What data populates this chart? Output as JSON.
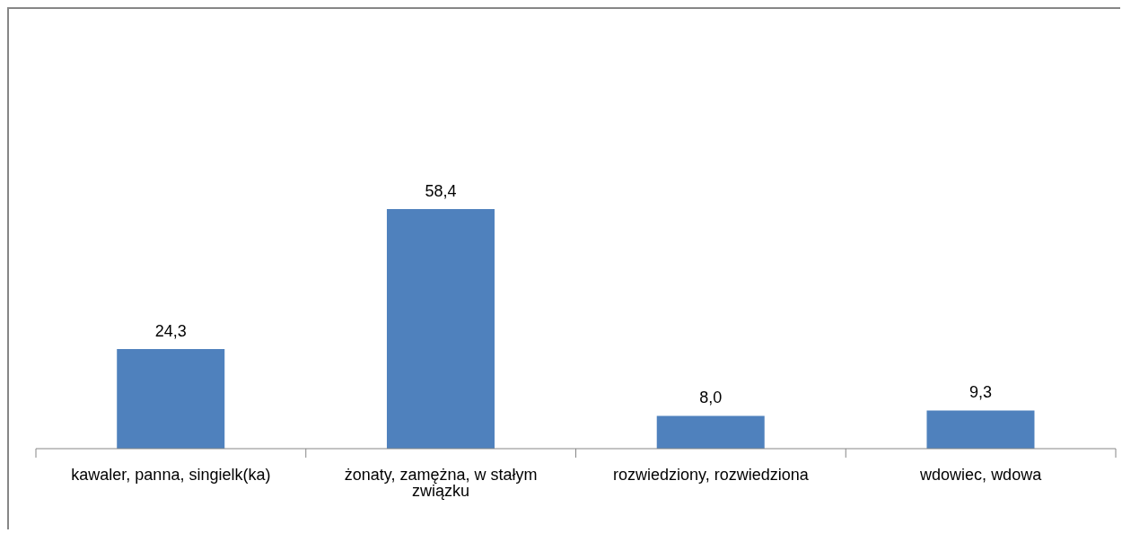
{
  "chart_data": {
    "type": "bar",
    "categories": [
      "kawaler, panna, singielk(ka)",
      "żonaty, zamężna, w stałym związku",
      "rozwiedziony, rozwiedziona",
      "wdowiec, wdowa"
    ],
    "values": [
      24.3,
      58.4,
      8.0,
      9.3
    ],
    "value_labels": [
      "24,3",
      "58,4",
      "8,0",
      "9,3"
    ],
    "color": "#4f81bd",
    "tick_labels": "x"
  }
}
